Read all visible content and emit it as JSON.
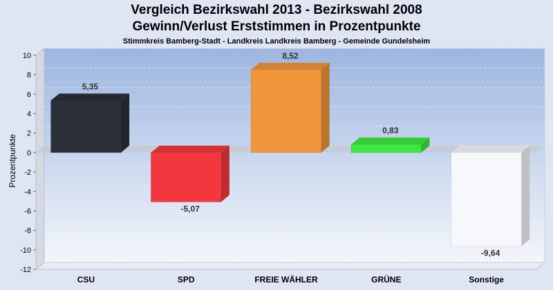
{
  "chart_data": {
    "type": "bar",
    "title": "Vergleich Bezirkswahl 2013 - Bezirkswahl 2008",
    "title2": "Gewinn/Verlust Erststimmen in Prozentpunkte",
    "subtitle": "Stimmkreis Bamberg-Stadt - Landkreis Landkreis Bamberg - Gemeinde Gundelsheim",
    "xlabel": "",
    "ylabel": "Prozentpunkte",
    "ylim": [
      -12,
      10
    ],
    "yticks": [
      10,
      8,
      6,
      4,
      2,
      0,
      -2,
      -4,
      -6,
      -8,
      -10,
      -12
    ],
    "categories": [
      "CSU",
      "SPD",
      "FREIE WÄHLER",
      "GRÜNE",
      "Sonstige"
    ],
    "values": [
      5.35,
      -5.07,
      8.52,
      0.83,
      -9.64
    ],
    "value_labels": [
      "5,35",
      "-5,07",
      "8,52",
      "0,83",
      "-9,64"
    ],
    "colors": [
      "#2b2f38",
      "#f2383e",
      "#f0953a",
      "#3ee83e",
      "#f7f8fb"
    ],
    "grid": true,
    "style": "3d"
  }
}
